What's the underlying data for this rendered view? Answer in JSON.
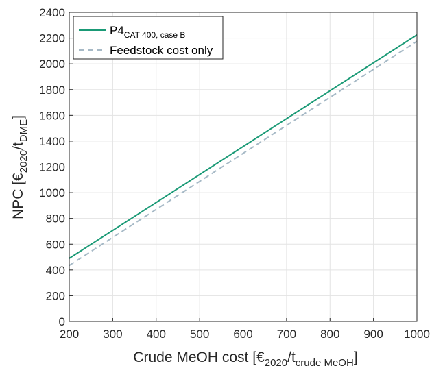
{
  "chart_data": {
    "type": "line",
    "xlabel": {
      "prefix": "Crude MeOH cost [€",
      "sub1": "2020",
      "mid": "/t",
      "sub2": "crude MeOH",
      "suffix": "]"
    },
    "ylabel": {
      "prefix": "NPC [€",
      "sub1": "2020",
      "mid": "/t",
      "sub2": "DME",
      "suffix": "]"
    },
    "xlim": [
      200,
      1000
    ],
    "ylim": [
      0,
      2400
    ],
    "xticks": [
      "200",
      "300",
      "400",
      "500",
      "600",
      "700",
      "800",
      "900",
      "1000"
    ],
    "yticks": [
      "0",
      "200",
      "400",
      "600",
      "800",
      "1000",
      "1200",
      "1400",
      "1600",
      "1800",
      "2000",
      "2200",
      "2400"
    ],
    "grid": true,
    "legend_position": "top-left",
    "series": [
      {
        "name": "P4",
        "name_sub": "CAT 400, case B",
        "color": "#1a9a76",
        "style": "solid",
        "x": [
          200,
          1000
        ],
        "y": [
          490,
          2225
        ]
      },
      {
        "name": "Feedstock cost only",
        "name_sub": "",
        "color": "#a6b9c6",
        "style": "dashed",
        "x": [
          200,
          1000
        ],
        "y": [
          435,
          2175
        ]
      }
    ]
  }
}
